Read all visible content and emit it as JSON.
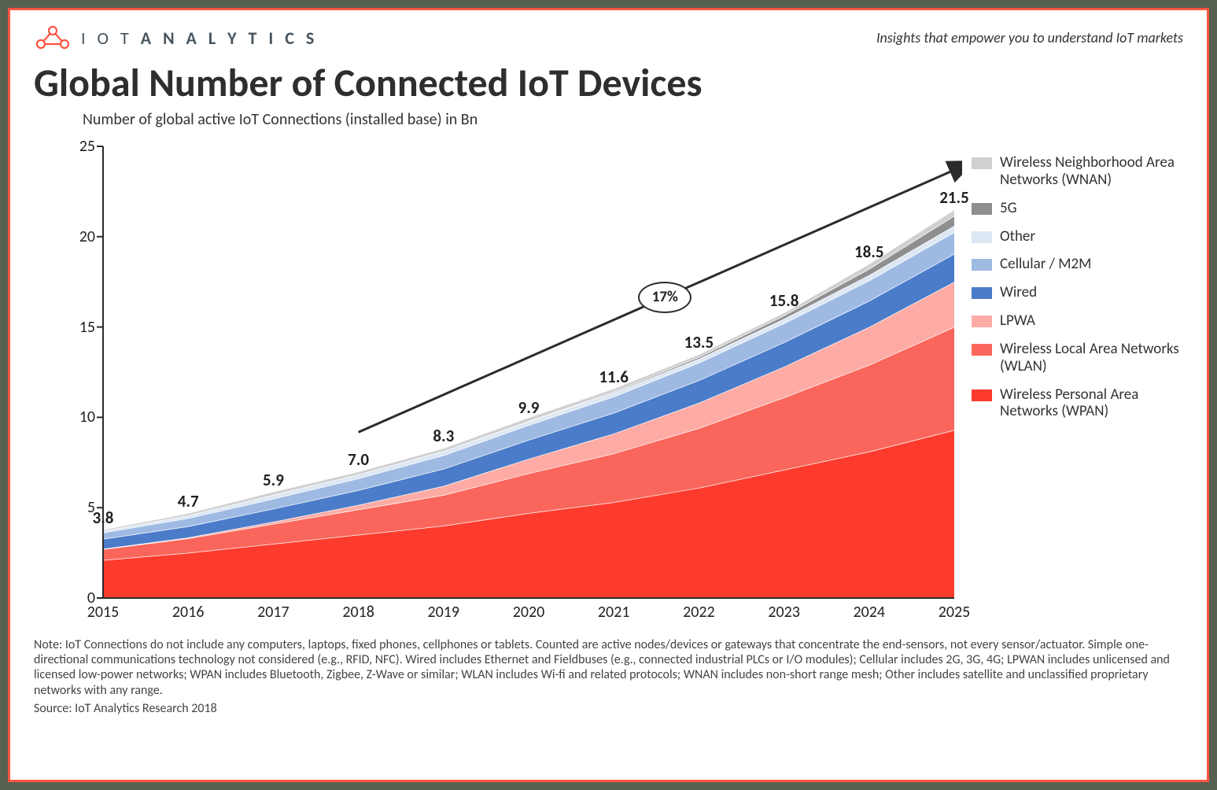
{
  "brand": {
    "logo_text_light": "I O T",
    "logo_text_bold": "A N A L Y T I C S",
    "tagline": "Insights that empower you to understand IoT markets",
    "logo_color": "#fd5442"
  },
  "title": "Global Number of Connected IoT Devices",
  "subtitle": "Number of global active IoT Connections (installed base) in Bn",
  "chart": {
    "type": "stacked-area",
    "background_color": "#ffffff",
    "axis_color": "#2b2b2b",
    "axis_stroke_width": 2,
    "label_fontsize": 20,
    "barlabel_fontsize": 21,
    "barlabel_fontweight": "bold",
    "xlim": [
      2015,
      2025
    ],
    "ylim": [
      0,
      25
    ],
    "ytick_step": 5,
    "yticks": [
      0,
      5,
      10,
      15,
      20,
      25
    ],
    "categories": [
      "2015",
      "2016",
      "2017",
      "2018",
      "2019",
      "2020",
      "2021",
      "2022",
      "2023",
      "2024",
      "2025"
    ],
    "totals": [
      3.8,
      4.7,
      5.9,
      7.0,
      8.3,
      9.9,
      11.6,
      13.5,
      15.8,
      18.5,
      21.5
    ],
    "cagr_label": "17%",
    "series": [
      {
        "name": "Wireless Personal Area Networks (WPAN)",
        "color": "#fd3b2d",
        "values": [
          2.1,
          2.5,
          3.0,
          3.5,
          4.0,
          4.7,
          5.3,
          6.1,
          7.1,
          8.1,
          9.3
        ]
      },
      {
        "name": "Wireless Local Area Networks (WLAN)",
        "color": "#fa665b",
        "values": [
          0.6,
          0.8,
          1.1,
          1.4,
          1.7,
          2.2,
          2.7,
          3.3,
          4.0,
          4.8,
          5.7
        ]
      },
      {
        "name": "LPWA",
        "color": "#fdaba4",
        "values": [
          0.02,
          0.05,
          0.12,
          0.25,
          0.5,
          0.8,
          1.1,
          1.4,
          1.7,
          2.1,
          2.5
        ]
      },
      {
        "name": "Wired",
        "color": "#4b7cc9",
        "values": [
          0.55,
          0.62,
          0.72,
          0.82,
          0.95,
          1.05,
          1.15,
          1.25,
          1.35,
          1.45,
          1.55
        ]
      },
      {
        "name": "Cellular / M2M",
        "color": "#9ebae3",
        "values": [
          0.35,
          0.45,
          0.55,
          0.65,
          0.75,
          0.82,
          0.9,
          0.97,
          1.05,
          1.12,
          1.2
        ]
      },
      {
        "name": "Other",
        "color": "#dde7f4",
        "values": [
          0.1,
          0.15,
          0.22,
          0.22,
          0.23,
          0.2,
          0.22,
          0.22,
          0.25,
          0.3,
          0.35
        ]
      },
      {
        "name": "5G",
        "color": "#8f8f8f",
        "values": [
          0.0,
          0.0,
          0.0,
          0.0,
          0.0,
          0.02,
          0.05,
          0.1,
          0.18,
          0.35,
          0.55
        ]
      },
      {
        "name": "Wireless Neighborhood Area Networks (WNAN)",
        "color": "#d0d0d0",
        "values": [
          0.08,
          0.13,
          0.18,
          0.16,
          0.17,
          0.21,
          0.18,
          0.16,
          0.17,
          0.28,
          0.35
        ]
      }
    ],
    "series_separator_color": "#ffffff",
    "series_separator_width": 1.5,
    "arrow_color": "#2b2b2b",
    "arrow_width": 3
  },
  "legend_order": [
    "Wireless Neighborhood Area Networks (WNAN)",
    "5G",
    "Other",
    "Cellular / M2M",
    "Wired",
    "LPWA",
    "Wireless Local Area Networks (WLAN)",
    "Wireless Personal Area Networks (WPAN)"
  ],
  "footnote": "Note: IoT Connections do not include any computers, laptops, fixed phones, cellphones or tablets. Counted are active nodes/devices or gateways that concentrate the end-sensors, not every sensor/actuator. Simple one-directional communications technology not considered (e.g., RFID, NFC). Wired includes Ethernet and Fieldbuses (e.g., connected industrial PLCs or I/O modules); Cellular includes 2G, 3G, 4G;  LPWAN includes unlicensed and licensed low-power networks; WPAN includes Bluetooth, Zigbee, Z-Wave or similar; WLAN includes Wi-fi and related protocols; WNAN includes non-short range mesh; Other includes satellite and unclassified proprietary networks with any range.",
  "source": "Source: IoT Analytics Research 2018",
  "frame": {
    "outer_bg": "#566050",
    "border_color": "#fd5442",
    "border_width": 3
  }
}
